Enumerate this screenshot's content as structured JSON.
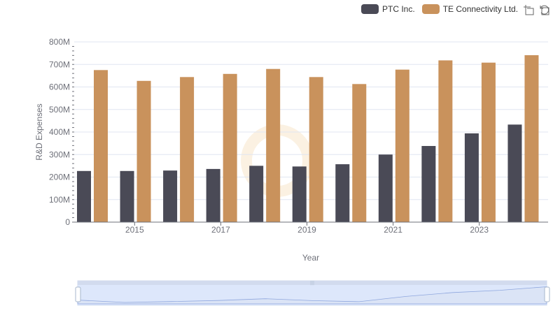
{
  "legend": {
    "items": [
      {
        "label": "PTC Inc.",
        "color": "#4a4a56"
      },
      {
        "label": "TE Connectivity Ltd.",
        "color": "#c9925c"
      }
    ]
  },
  "toolbox": {
    "icons": [
      "zoom-icon",
      "restore-icon"
    ]
  },
  "chart_data": {
    "type": "bar",
    "xlabel": "Year",
    "ylabel": "R&D Expenses",
    "categories": [
      "2014",
      "2015",
      "2016",
      "2017",
      "2018",
      "2019",
      "2020",
      "2021",
      "2022",
      "2023",
      "2024"
    ],
    "x_tick_labels": [
      "2015",
      "2017",
      "2019",
      "2021",
      "2023"
    ],
    "y_tick_labels": [
      "0",
      "100M",
      "200M",
      "300M",
      "400M",
      "500M",
      "600M",
      "700M",
      "800M"
    ],
    "ylim": [
      0,
      800000000
    ],
    "grid": true,
    "legend_position": "top-right",
    "series": [
      {
        "name": "PTC Inc.",
        "color": "#4a4a56",
        "values": [
          227000000,
          227000000,
          229000000,
          236000000,
          250000000,
          247000000,
          257000000,
          300000000,
          338000000,
          394000000,
          433000000
        ]
      },
      {
        "name": "TE Connectivity Ltd.",
        "color": "#c9925c",
        "values": [
          675000000,
          627000000,
          644000000,
          658000000,
          680000000,
          644000000,
          613000000,
          677000000,
          718000000,
          708000000,
          741000000
        ]
      }
    ]
  }
}
